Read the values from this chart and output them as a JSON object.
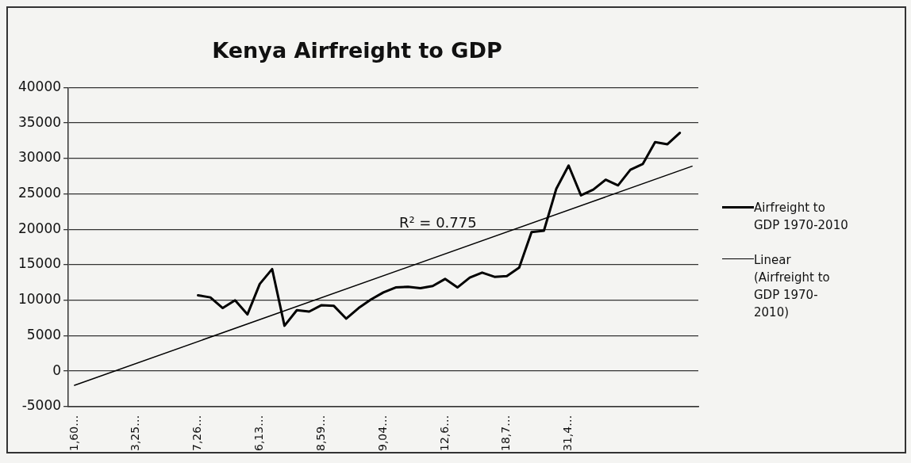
{
  "chart_data": {
    "type": "line",
    "title": "Kenya Airfreight to GDP",
    "categories": [
      "1,60…",
      null,
      null,
      null,
      null,
      "3,25…",
      null,
      null,
      null,
      null,
      "7,26…",
      null,
      null,
      null,
      null,
      "6,13…",
      null,
      null,
      null,
      null,
      "8,59…",
      null,
      null,
      null,
      null,
      "9,04…",
      null,
      null,
      null,
      null,
      "12,6…",
      null,
      null,
      null,
      null,
      "18,7…",
      null,
      null,
      null,
      null,
      "31,4…",
      null,
      null,
      null,
      null,
      null,
      null,
      null,
      null,
      null,
      null
    ],
    "series": [
      {
        "name": "Airfreight to GDP 1970-2010",
        "color": "#000000",
        "values": [
          null,
          null,
          null,
          null,
          null,
          null,
          null,
          null,
          null,
          null,
          10700,
          10400,
          8900,
          10000,
          8000,
          12300,
          14400,
          6400,
          8600,
          8400,
          9300,
          9200,
          7400,
          8900,
          10100,
          11100,
          11800,
          11900,
          11700,
          12000,
          13000,
          11800,
          13200,
          13900,
          13300,
          13400,
          14600,
          19600,
          19800,
          25700,
          29000,
          24800,
          25600,
          27000,
          26200,
          28400,
          29200,
          32300,
          32000,
          33600,
          null
        ]
      },
      {
        "name": "Linear (Airfreight to GDP 1970-2010)",
        "type": "line",
        "color": "#000000",
        "values": [
          -2000,
          null,
          null,
          null,
          null,
          null,
          null,
          null,
          null,
          null,
          null,
          null,
          null,
          null,
          null,
          null,
          null,
          null,
          null,
          null,
          null,
          null,
          null,
          null,
          null,
          null,
          null,
          null,
          null,
          null,
          null,
          null,
          null,
          null,
          null,
          null,
          null,
          null,
          null,
          null,
          null,
          null,
          null,
          null,
          null,
          null,
          null,
          null,
          null,
          null,
          28900
        ]
      }
    ],
    "ylim": [
      -5000,
      40000
    ],
    "yticks": [
      -5000,
      0,
      5000,
      10000,
      15000,
      20000,
      25000,
      30000,
      35000,
      40000
    ],
    "grid": "y",
    "legend": "right",
    "marker": "none",
    "annotations": [
      "R² = 0.775"
    ]
  }
}
